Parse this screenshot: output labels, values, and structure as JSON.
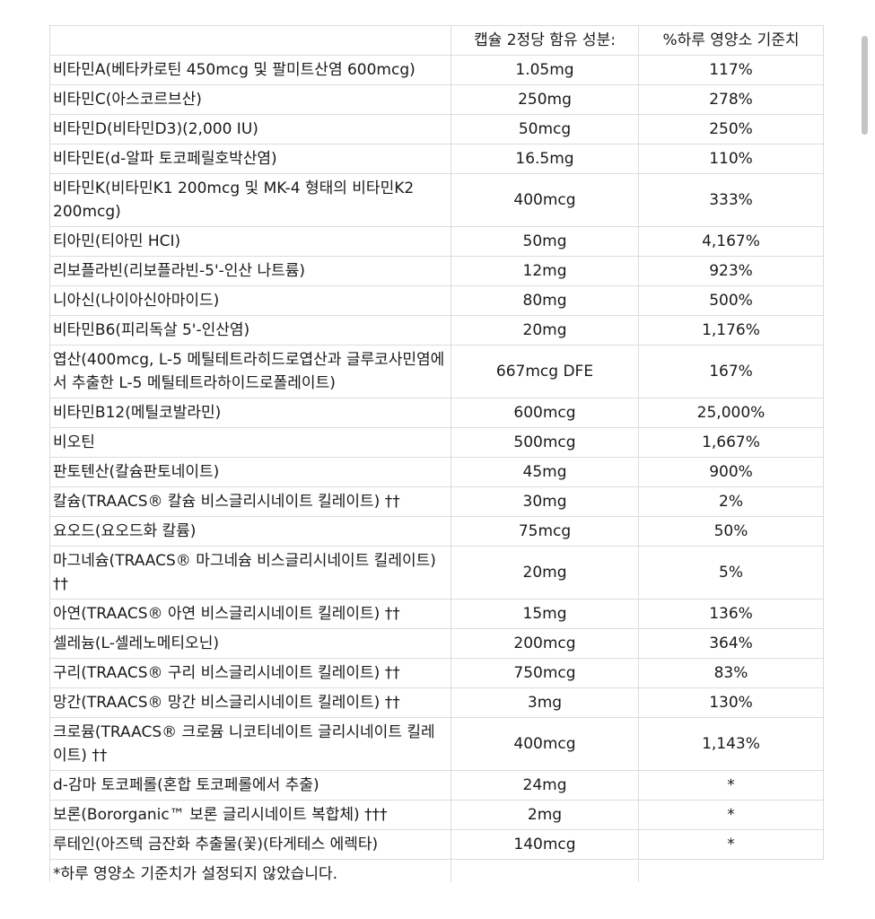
{
  "header": {
    "col_name": "",
    "col_amount": "캡슐 2정당 함유 성분:",
    "col_dv": "%하루 영양소 기준치"
  },
  "rows": [
    {
      "name": "비타민A(베타카로틴 450mcg 및 팔미트산염 600mcg)",
      "amount": "1.05mg",
      "dv": "117%"
    },
    {
      "name": "비타민C(아스코르브산)",
      "amount": "250mg",
      "dv": "278%"
    },
    {
      "name": "비타민D(비타민D3)(2,000 IU)",
      "amount": "50mcg",
      "dv": "250%"
    },
    {
      "name": "비타민E(d-알파 토코페릴호박산염)",
      "amount": "16.5mg",
      "dv": "110%"
    },
    {
      "name": "비타민K(비타민K1 200mcg 및 MK-4 형태의 비타민K2 200mcg)",
      "amount": "400mcg",
      "dv": "333%"
    },
    {
      "name": "티아민(티아민 HCI)",
      "amount": "50mg",
      "dv": "4,167%"
    },
    {
      "name": "리보플라빈(리보플라빈-5'-인산 나트륨)",
      "amount": "12mg",
      "dv": "923%"
    },
    {
      "name": "니아신(나이아신아마이드)",
      "amount": "80mg",
      "dv": "500%"
    },
    {
      "name": "비타민B6(피리독살 5'-인산염)",
      "amount": "20mg",
      "dv": "1,176%"
    },
    {
      "name": "엽산(400mcg, L-5 메틸테트라히드로엽산과 글루코사민염에서 추출한 L-5 메틸테트라하이드로폴레이트)",
      "amount": "667mcg DFE",
      "dv": "167%"
    },
    {
      "name": "비타민B12(메틸코발라민)",
      "amount": "600mcg",
      "dv": "25,000%"
    },
    {
      "name": "비오틴",
      "amount": "500mcg",
      "dv": "1,667%"
    },
    {
      "name": "판토텐산(칼슘판토네이트)",
      "amount": "45mg",
      "dv": "900%"
    },
    {
      "name": "칼슘(TRAACS® 칼슘 비스글리시네이트 킬레이트) ††",
      "amount": "30mg",
      "dv": "2%"
    },
    {
      "name": "요오드(요오드화 칼륨)",
      "amount": "75mcg",
      "dv": "50%"
    },
    {
      "name": "마그네슘(TRAACS® 마그네슘 비스글리시네이트 킬레이트) ††",
      "amount": "20mg",
      "dv": "5%"
    },
    {
      "name": "아연(TRAACS® 아연 비스글리시네이트 킬레이트) ††",
      "amount": "15mg",
      "dv": "136%"
    },
    {
      "name": "셀레늄(L-셀레노메티오닌)",
      "amount": "200mcg",
      "dv": "364%"
    },
    {
      "name": "구리(TRAACS® 구리 비스글리시네이트 킬레이트) ††",
      "amount": "750mcg",
      "dv": "83%"
    },
    {
      "name": "망간(TRAACS® 망간 비스글리시네이트 킬레이트) ††",
      "amount": "3mg",
      "dv": "130%"
    },
    {
      "name": "크로뮴(TRAACS® 크로뮴 니코티네이트 글리시네이트 킬레이트) ††",
      "amount": "400mcg",
      "dv": "1,143%"
    },
    {
      "name": "d-감마 토코페롤(혼합 토코페롤에서 추출)",
      "amount": "24mg",
      "dv": "*"
    },
    {
      "name": "보론(Bororganic™ 보론 글리시네이트 복합체) †††",
      "amount": "2mg",
      "dv": "*"
    },
    {
      "name": "루테인(아즈텍 금잔화 추출물(꽃)(타게테스 에렉타)",
      "amount": "140mcg",
      "dv": "*"
    }
  ],
  "footnote": "*하루 영양소 기준치가 설정되지 않았습니다."
}
